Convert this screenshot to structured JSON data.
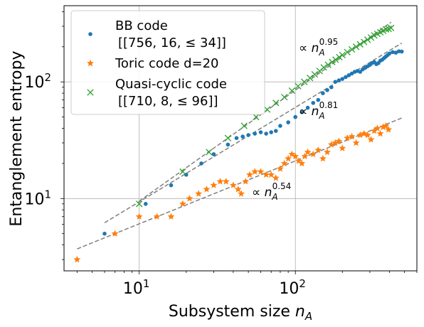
{
  "chart_data": {
    "type": "scatter",
    "xscale": "log",
    "yscale": "log",
    "xlim": [
      3.3,
      600
    ],
    "ylim": [
      2.4,
      450
    ],
    "xlabel_prefix": "Subsystem size ",
    "xlabel_var": "n",
    "xlabel_sub": "A",
    "ylabel": "Entanglement entropy",
    "grid": true,
    "legend_position": "top-left",
    "x_ticks": [
      {
        "value": 10,
        "base": "10",
        "exp": "1"
      },
      {
        "value": 100,
        "base": "10",
        "exp": "2"
      }
    ],
    "y_ticks": [
      {
        "value": 10,
        "base": "10",
        "exp": "1"
      },
      {
        "value": 100,
        "base": "10",
        "exp": "2"
      }
    ],
    "series": [
      {
        "name_line1": "BB code",
        "name_line2": "[[756, 16, ≤ 34]]",
        "marker": "dot",
        "color": "#1f77b4",
        "x": [
          6,
          11,
          16,
          20,
          25,
          30,
          37,
          42,
          46,
          50,
          55,
          60,
          65,
          70,
          75,
          80,
          90,
          100,
          110,
          120,
          130,
          140,
          150,
          160,
          170,
          180,
          190,
          200,
          210,
          220,
          230,
          240,
          250,
          260,
          270,
          280,
          290,
          300,
          310,
          320,
          330,
          340,
          350,
          360,
          370,
          380,
          390,
          400,
          420,
          440,
          460,
          480
        ],
        "y": [
          5,
          9,
          13,
          16,
          20,
          24,
          29,
          33,
          34,
          35,
          36,
          37,
          36,
          37,
          38,
          42,
          45,
          50,
          55,
          60,
          66,
          70,
          80,
          85,
          90,
          100,
          103,
          106,
          110,
          114,
          118,
          122,
          124,
          122,
          128,
          132,
          136,
          140,
          145,
          148,
          142,
          145,
          152,
          155,
          160,
          165,
          170,
          175,
          180,
          178,
          183,
          182
        ]
      },
      {
        "name_line1": "Toric code d=20",
        "marker": "star",
        "color": "#ff7f0e",
        "x": [
          4,
          7,
          10,
          13,
          16,
          19,
          21,
          24,
          27,
          30,
          33,
          36,
          40,
          43,
          45,
          48,
          51,
          55,
          60,
          65,
          70,
          75,
          80,
          85,
          90,
          95,
          100,
          105,
          110,
          115,
          120,
          130,
          140,
          150,
          160,
          170,
          180,
          190,
          200,
          215,
          230,
          245,
          260,
          275,
          290,
          305,
          320,
          335,
          350,
          365,
          380,
          395
        ],
        "y": [
          3,
          5,
          7,
          7,
          7,
          9,
          10,
          11,
          12,
          13,
          14,
          14,
          13,
          12,
          11,
          14,
          16,
          17,
          17,
          16,
          16,
          15,
          18,
          20,
          22,
          24,
          23,
          21,
          20,
          23,
          25,
          24,
          26,
          22,
          25,
          29,
          30,
          31,
          27,
          33,
          34,
          30,
          35,
          36,
          35,
          32,
          38,
          40,
          36,
          41,
          42,
          39
        ]
      },
      {
        "name_line1": "Quasi-cyclic code",
        "name_line2": "[[710, 8, ≤ 96]]",
        "marker": "x",
        "color": "#2ca02c",
        "x": [
          10,
          19,
          28,
          37,
          47,
          56,
          66,
          75,
          85,
          95,
          104,
          114,
          124,
          133,
          143,
          152,
          162,
          172,
          181,
          191,
          200,
          215,
          230,
          245,
          260,
          275,
          290,
          305,
          320,
          335,
          350,
          365,
          380,
          395,
          410
        ],
        "y": [
          9,
          17,
          25,
          33,
          42,
          50,
          58,
          66,
          74,
          84,
          92,
          100,
          108,
          116,
          124,
          133,
          140,
          148,
          155,
          163,
          170,
          180,
          190,
          200,
          210,
          220,
          230,
          240,
          250,
          258,
          266,
          274,
          282,
          285,
          290
        ]
      }
    ],
    "fits": [
      {
        "label_prefix": "∝ ",
        "label_var": "n",
        "label_sub": "A",
        "label_exp": "0.95",
        "x": [
          10,
          410
        ],
        "y": [
          9.5,
          325
        ]
      },
      {
        "label_prefix": "∝ ",
        "label_var": "n",
        "label_sub": "A",
        "label_exp": "0.81",
        "x": [
          6,
          480
        ],
        "y": [
          6.2,
          215
        ]
      },
      {
        "label_prefix": "∝ ",
        "label_var": "n",
        "label_sub": "A",
        "label_exp": "0.54",
        "x": [
          4,
          480
        ],
        "y": [
          3.7,
          49
        ]
      }
    ]
  }
}
